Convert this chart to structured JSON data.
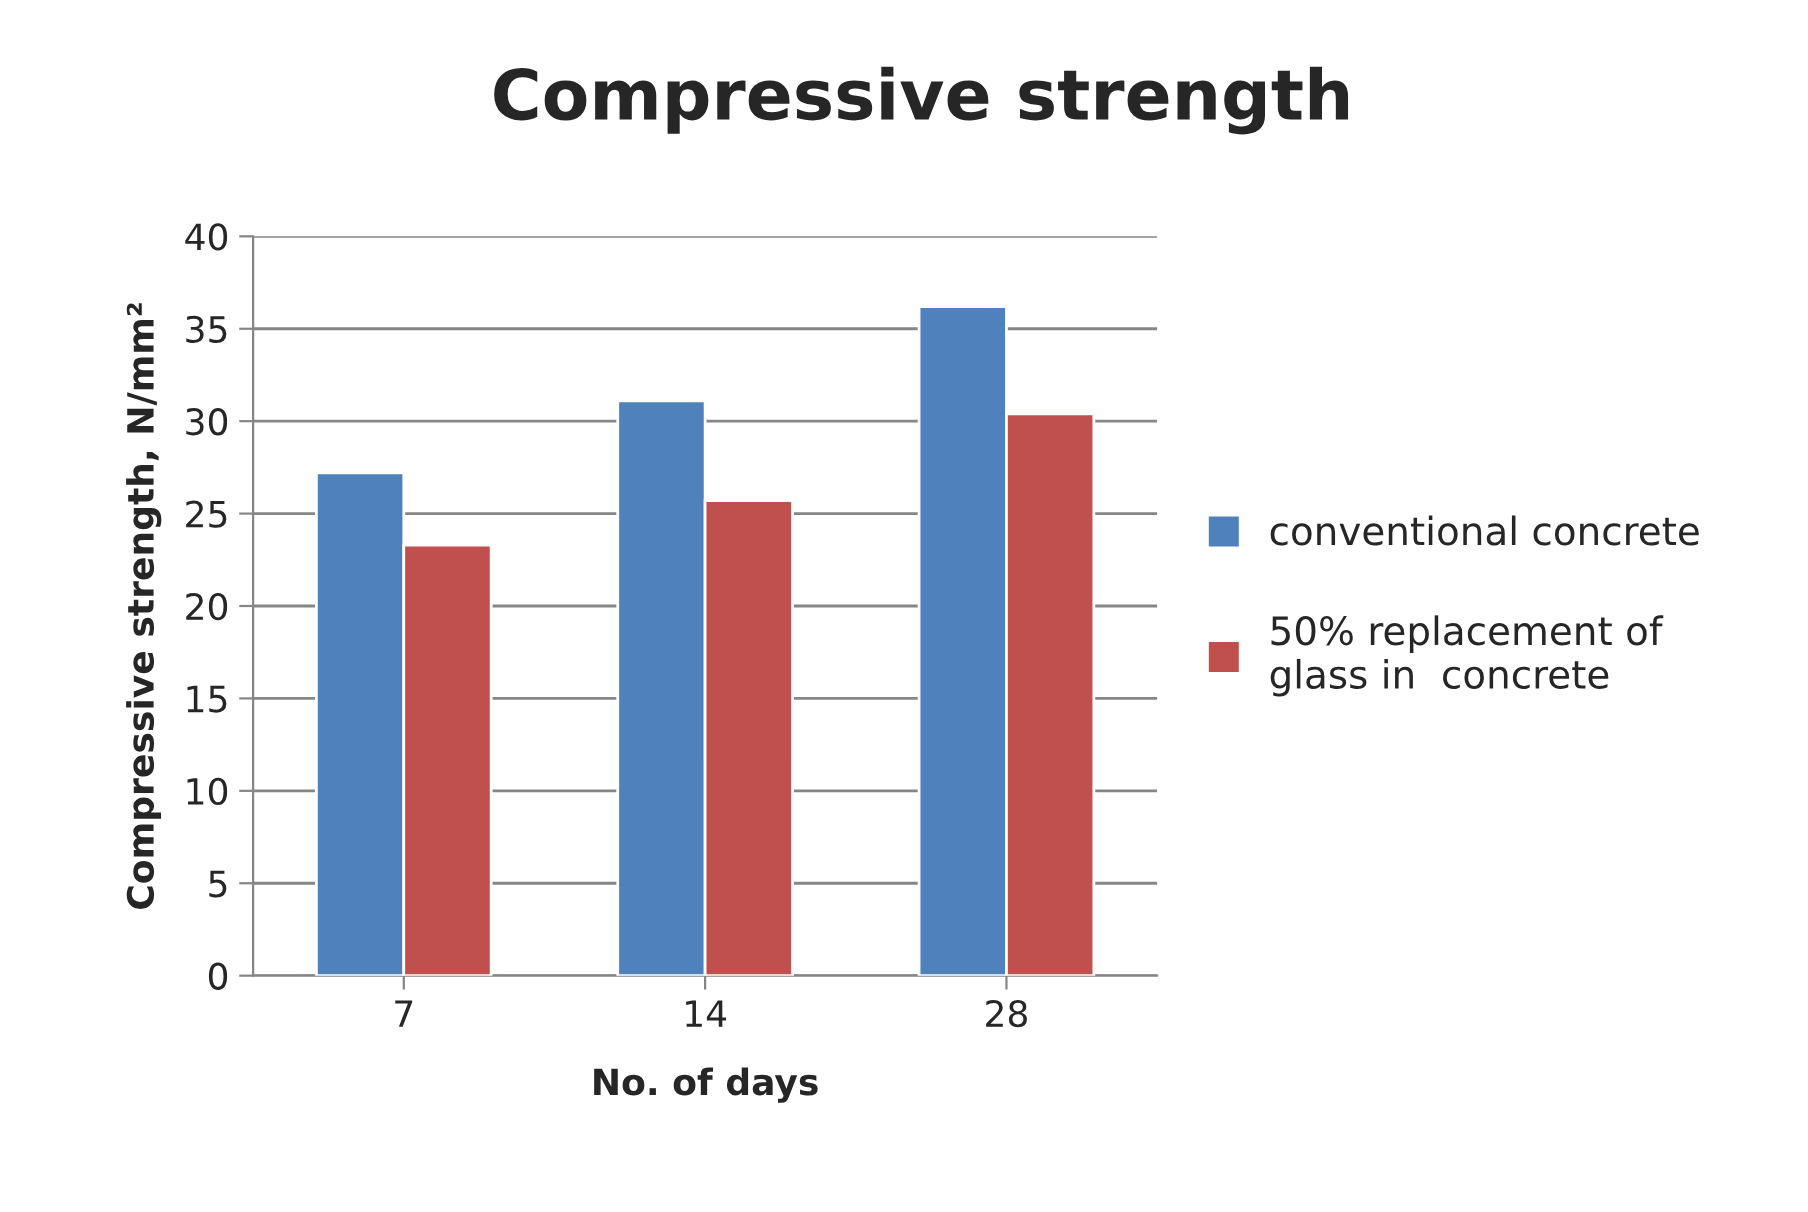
{
  "chart_data": {
    "type": "bar",
    "title": "Compressive strength",
    "xlabel": "No. of days",
    "ylabel": "Compressive strength, N/mm²",
    "categories": [
      "7",
      "14",
      "28"
    ],
    "series": [
      {
        "name": "conventional concrete",
        "color": "#4f81bd",
        "values": [
          27.2,
          31.1,
          36.2
        ]
      },
      {
        "name": "50% replacement of\nglass in  concrete",
        "color": "#c0504d",
        "values": [
          23.3,
          25.7,
          30.4
        ]
      }
    ],
    "ylim": [
      0,
      40
    ],
    "yticks": [
      0,
      5,
      10,
      15,
      20,
      25,
      30,
      35,
      40
    ],
    "grid": "y",
    "legend": "right"
  }
}
